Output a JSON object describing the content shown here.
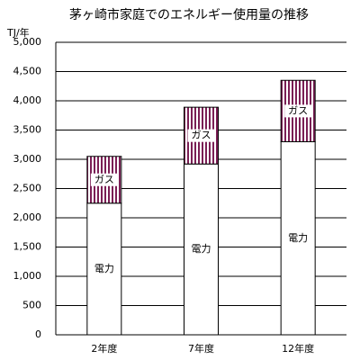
{
  "chart_data": {
    "type": "stacked_bar",
    "title": "茅ヶ崎市家庭でのエネルギー使用量の推移",
    "y_label": "TJ/年",
    "categories": [
      "2年度",
      "7年度",
      "12年度"
    ],
    "series": [
      {
        "name": "電力",
        "color": "#ffffff",
        "values": [
          2250,
          2920,
          3300
        ]
      },
      {
        "name": "ガス",
        "color": "#7b1f55",
        "values": [
          800,
          970,
          1050
        ]
      }
    ],
    "ylim": [
      0,
      5000
    ],
    "yticks": [
      0,
      500,
      {
        "value": 1000,
        "label": "1,000"
      },
      {
        "value": 1500,
        "label": "1,500"
      },
      {
        "value": 2000,
        "label": "2,000"
      },
      {
        "value": 2500,
        "label": "2,500"
      },
      {
        "value": 3000,
        "label": "3,000"
      },
      {
        "value": 3500,
        "label": "3,500"
      },
      {
        "value": 4000,
        "label": "4,000"
      },
      {
        "value": 4500,
        "label": "4,500"
      },
      {
        "value": 5000,
        "label": "5,000"
      }
    ],
    "grid": true
  }
}
